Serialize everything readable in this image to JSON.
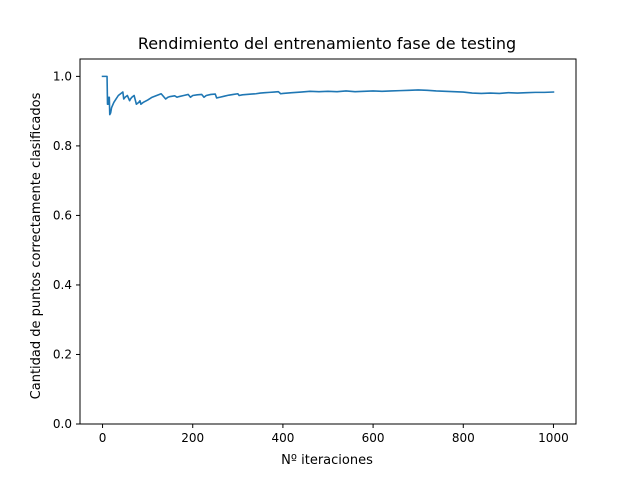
{
  "chart_data": {
    "type": "line",
    "title": "Rendimiento del entrenamiento fase de testing",
    "xlabel": "Nº iteraciones",
    "ylabel": "Cantidad de puntos correctamente clasificados",
    "xlim": [
      -50,
      1050
    ],
    "ylim": [
      0.0,
      1.05
    ],
    "xticks": [
      0,
      200,
      400,
      600,
      800,
      1000
    ],
    "xtick_labels": [
      "0",
      "200",
      "400",
      "600",
      "800",
      "1000"
    ],
    "yticks": [
      0.0,
      0.2,
      0.4,
      0.6,
      0.8,
      1.0
    ],
    "ytick_labels": [
      "0.0",
      "0.2",
      "0.4",
      "0.6",
      "0.8",
      "1.0"
    ],
    "grid": false,
    "legend": "none",
    "series": [
      {
        "color": "#1f77b4",
        "x": [
          0,
          5,
          8,
          10,
          11,
          13,
          14,
          15,
          16,
          18,
          20,
          25,
          30,
          35,
          40,
          45,
          47,
          50,
          55,
          60,
          62,
          65,
          70,
          75,
          80,
          83,
          85,
          90,
          100,
          110,
          120,
          130,
          140,
          145,
          150,
          160,
          165,
          170,
          180,
          190,
          195,
          200,
          210,
          220,
          225,
          230,
          240,
          250,
          253,
          260,
          270,
          280,
          290,
          300,
          303,
          310,
          320,
          330,
          340,
          350,
          360,
          370,
          380,
          390,
          395,
          400,
          420,
          440,
          460,
          480,
          500,
          520,
          540,
          560,
          580,
          600,
          620,
          640,
          660,
          680,
          700,
          720,
          740,
          760,
          780,
          800,
          820,
          840,
          860,
          880,
          900,
          920,
          940,
          960,
          980,
          1000
        ],
        "y": [
          1.0,
          1.0,
          1.0,
          1.0,
          0.92,
          0.92,
          0.94,
          0.94,
          0.89,
          0.895,
          0.91,
          0.925,
          0.935,
          0.945,
          0.95,
          0.955,
          0.935,
          0.94,
          0.945,
          0.93,
          0.935,
          0.94,
          0.945,
          0.92,
          0.925,
          0.93,
          0.92,
          0.925,
          0.932,
          0.94,
          0.945,
          0.95,
          0.935,
          0.94,
          0.942,
          0.944,
          0.94,
          0.942,
          0.945,
          0.948,
          0.94,
          0.945,
          0.947,
          0.948,
          0.94,
          0.945,
          0.948,
          0.949,
          0.938,
          0.94,
          0.943,
          0.946,
          0.948,
          0.95,
          0.945,
          0.947,
          0.948,
          0.949,
          0.95,
          0.952,
          0.953,
          0.954,
          0.955,
          0.956,
          0.95,
          0.951,
          0.953,
          0.955,
          0.957,
          0.956,
          0.957,
          0.956,
          0.958,
          0.956,
          0.957,
          0.958,
          0.957,
          0.958,
          0.959,
          0.96,
          0.961,
          0.96,
          0.958,
          0.957,
          0.956,
          0.955,
          0.952,
          0.951,
          0.952,
          0.951,
          0.953,
          0.952,
          0.953,
          0.954,
          0.954,
          0.955
        ]
      }
    ]
  }
}
